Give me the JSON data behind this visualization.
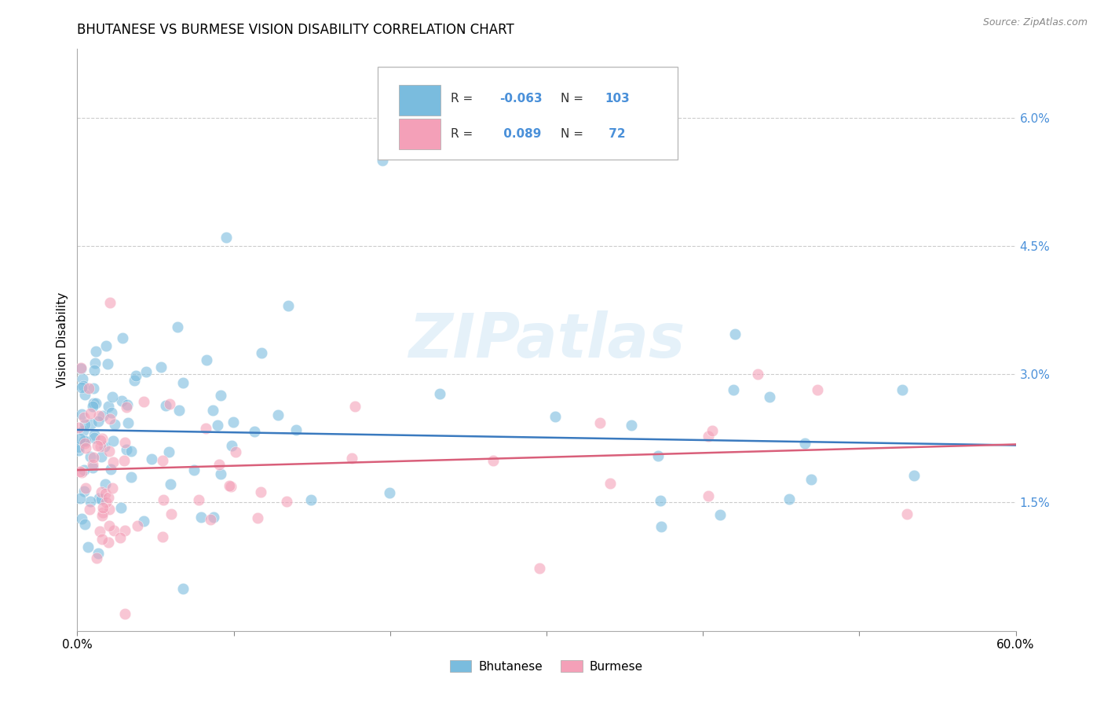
{
  "title": "BHUTANESE VS BURMESE VISION DISABILITY CORRELATION CHART",
  "source": "Source: ZipAtlas.com",
  "ylabel_label": "Vision Disability",
  "xlim": [
    0.0,
    0.6
  ],
  "ylim": [
    0.0,
    0.068
  ],
  "blue_color": "#7abcde",
  "pink_color": "#f4a0b8",
  "blue_line_color": "#3a7abf",
  "pink_line_color": "#d95f7a",
  "label_color": "#4a90d9",
  "legend_R_blue": "-0.063",
  "legend_N_blue": "103",
  "legend_R_pink": "0.089",
  "legend_N_pink": "72",
  "watermark": "ZIPatlas",
  "blue_intercept": 0.0235,
  "blue_slope": -0.003,
  "pink_intercept": 0.0188,
  "pink_slope": 0.005
}
